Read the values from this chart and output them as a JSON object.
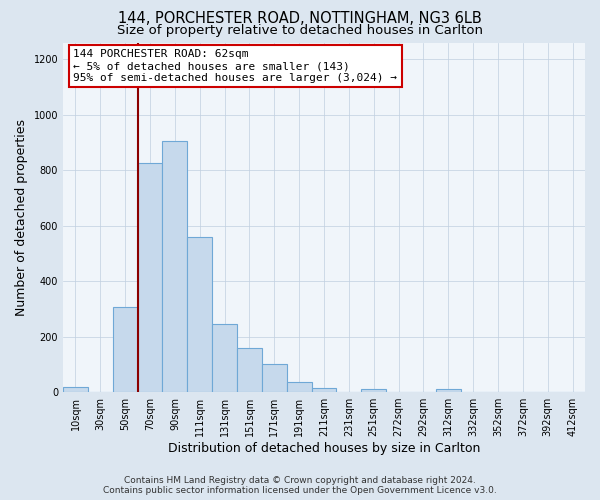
{
  "title_line1": "144, PORCHESTER ROAD, NOTTINGHAM, NG3 6LB",
  "title_line2": "Size of property relative to detached houses in Carlton",
  "xlabel": "Distribution of detached houses by size in Carlton",
  "ylabel": "Number of detached properties",
  "bar_labels": [
    "10sqm",
    "30sqm",
    "50sqm",
    "70sqm",
    "90sqm",
    "111sqm",
    "131sqm",
    "151sqm",
    "171sqm",
    "191sqm",
    "211sqm",
    "231sqm",
    "251sqm",
    "272sqm",
    "292sqm",
    "312sqm",
    "332sqm",
    "352sqm",
    "372sqm",
    "392sqm",
    "412sqm"
  ],
  "bar_values": [
    20,
    0,
    305,
    825,
    905,
    560,
    245,
    160,
    100,
    35,
    15,
    0,
    10,
    0,
    0,
    10,
    0,
    0,
    0,
    0,
    0
  ],
  "bar_color": "#c6d9ec",
  "bar_edge_color": "#6fa8d6",
  "vline_color": "#8b0000",
  "annotation_line1": "144 PORCHESTER ROAD: 62sqm",
  "annotation_line2": "← 5% of detached houses are smaller (143)",
  "annotation_line3": "95% of semi-detached houses are larger (3,024) →",
  "annotation_box_color": "white",
  "annotation_box_edge_color": "#cc0000",
  "ylim": [
    0,
    1260
  ],
  "yticks": [
    0,
    200,
    400,
    600,
    800,
    1000,
    1200
  ],
  "footer_line1": "Contains HM Land Registry data © Crown copyright and database right 2024.",
  "footer_line2": "Contains public sector information licensed under the Open Government Licence v3.0.",
  "bg_color": "#dce6f0",
  "plot_bg_color": "#f0f5fa",
  "grid_color": "#c0cfe0",
  "title_fontsize": 10.5,
  "subtitle_fontsize": 9.5,
  "ylabel_fontsize": 9,
  "xlabel_fontsize": 9,
  "tick_fontsize": 7,
  "annotation_fontsize": 8,
  "footer_fontsize": 6.5
}
